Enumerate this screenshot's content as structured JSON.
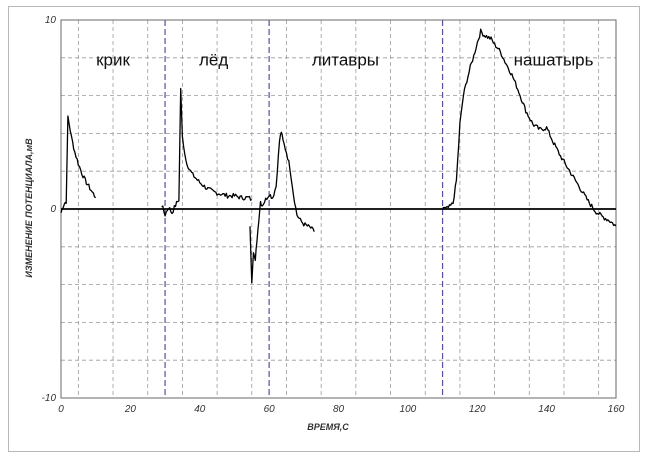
{
  "chart_data": {
    "type": "line",
    "title": "",
    "xlabel": "ВРЕМЯ,С",
    "ylabel": "ИЗМЕНЕНИЕ ПОТЕНЦИАЛА,мВ",
    "xlim": [
      0,
      160
    ],
    "ylim": [
      -10,
      10
    ],
    "x_ticks": [
      0,
      20,
      40,
      60,
      80,
      100,
      120,
      140,
      160
    ],
    "y_ticks": [
      -10,
      0,
      10
    ],
    "grid": true,
    "legend": "none",
    "annotations": [
      {
        "text": "крик",
        "x": 15,
        "y": 7.6
      },
      {
        "text": "лёд",
        "x": 44,
        "y": 7.6
      },
      {
        "text": "литавры",
        "x": 82,
        "y": 7.6
      },
      {
        "text": "нашатырь",
        "x": 142,
        "y": 7.6
      }
    ],
    "event_lines": [
      30,
      60,
      110
    ],
    "series": [
      {
        "color": "#000000",
        "segments": [
          {
            "x": [
              0,
              0.5,
              1,
              1.5,
              2,
              3,
              4,
              5,
              6,
              7,
              8,
              9,
              10
            ],
            "y": [
              -0.2,
              0.1,
              0.3,
              0.4,
              4.9,
              3.8,
              3.0,
              2.4,
              1.9,
              1.5,
              1.2,
              0.9,
              0.6
            ]
          },
          {
            "x": [
              29,
              30,
              31,
              32,
              33,
              34,
              34.5,
              35,
              36,
              37,
              38,
              40,
              42,
              44,
              46,
              48,
              50,
              52,
              54,
              55
            ],
            "y": [
              0.2,
              -0.3,
              0.1,
              -0.2,
              0.2,
              0.5,
              6.4,
              3.8,
              2.6,
              2.1,
              1.8,
              1.4,
              1.1,
              0.9,
              0.8,
              0.7,
              0.7,
              0.6,
              0.6,
              0.5
            ]
          },
          {
            "x": [
              54.5,
              55,
              55.5,
              56,
              56.5,
              57,
              57.5,
              58,
              59,
              60,
              61,
              62,
              63,
              63.5,
              64,
              65,
              66,
              67,
              68,
              69,
              70,
              72,
              73
            ],
            "y": [
              -1.0,
              -3.8,
              -2.2,
              -2.8,
              -1.6,
              -0.6,
              0.4,
              0.2,
              0.5,
              0.8,
              0.6,
              1.2,
              3.6,
              4.1,
              3.6,
              3.0,
              2.2,
              0.8,
              -0.3,
              -0.6,
              -0.8,
              -1.0,
              -1.2
            ]
          },
          {
            "x": [
              110,
              111,
              112,
              113,
              114,
              115,
              116,
              117,
              118,
              119,
              120,
              121,
              122,
              123,
              124,
              125,
              126,
              127,
              128,
              130,
              132,
              134,
              136,
              138,
              140,
              142,
              144,
              146,
              148,
              150,
              152,
              154,
              156,
              158,
              160
            ],
            "y": [
              0.1,
              0.0,
              0.1,
              0.3,
              1.5,
              4.5,
              6.0,
              6.8,
              7.5,
              8.1,
              8.8,
              9.4,
              9.2,
              9.1,
              9.0,
              8.7,
              8.5,
              8.2,
              7.8,
              7.1,
              6.2,
              5.2,
              4.5,
              4.2,
              4.3,
              3.5,
              2.8,
              2.2,
              1.6,
              1.0,
              0.4,
              -0.1,
              -0.4,
              -0.6,
              -0.9
            ]
          }
        ]
      }
    ]
  }
}
